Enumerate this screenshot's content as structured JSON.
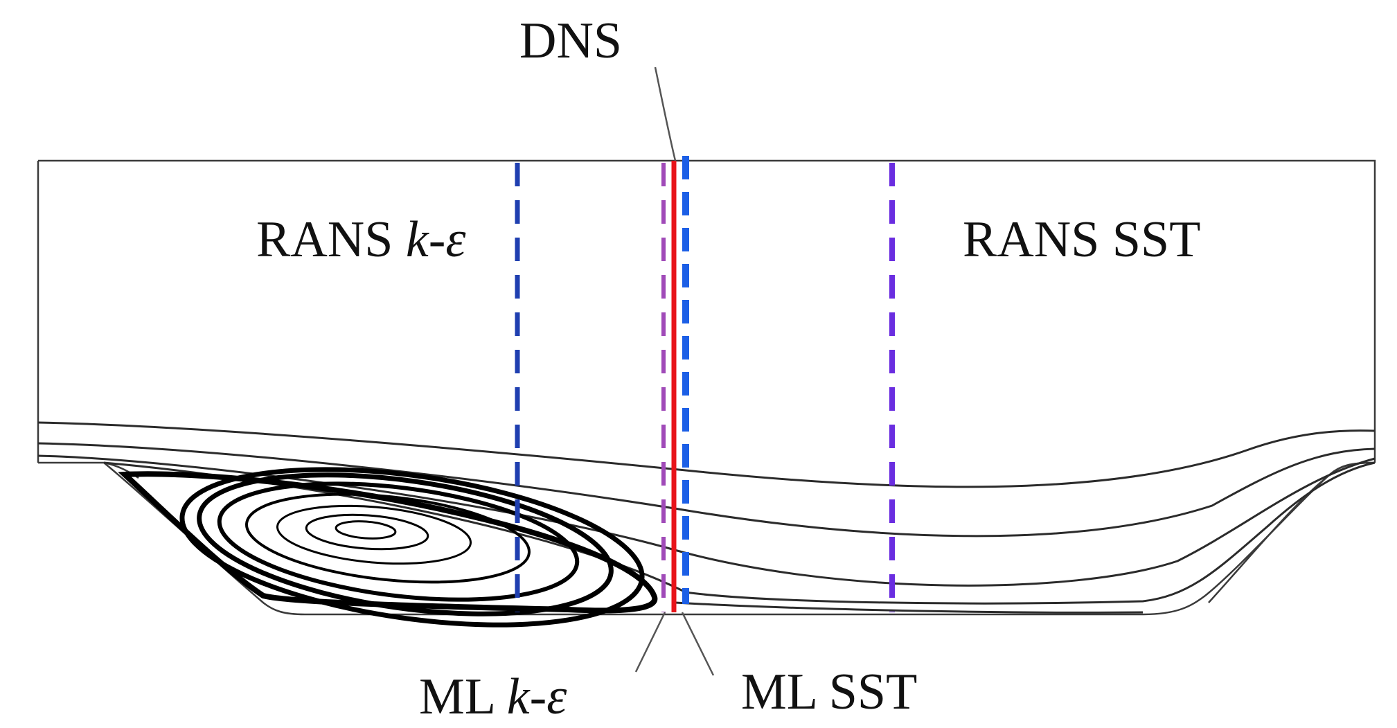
{
  "labels": {
    "dns": "DNS",
    "rans_ke_prefix": "RANS ",
    "rans_ke_k": "k",
    "rans_ke_dash": "-",
    "rans_ke_eps": "ε",
    "rans_sst": "RANS SST",
    "ml_ke_prefix": "ML ",
    "ml_ke_k": "k",
    "ml_ke_dash": "-",
    "ml_ke_eps": "ε",
    "ml_sst": "ML SST"
  },
  "colors": {
    "dns": "#e8141a",
    "rans_ke": "#1f3fb0",
    "rans_sst": "#6a2de0",
    "ml_ke": "#a04ab8",
    "ml_sst": "#1c5fe6",
    "streamline": "#2b2b2b",
    "vortex": "#000000",
    "wall": "#3a3a3a"
  }
}
